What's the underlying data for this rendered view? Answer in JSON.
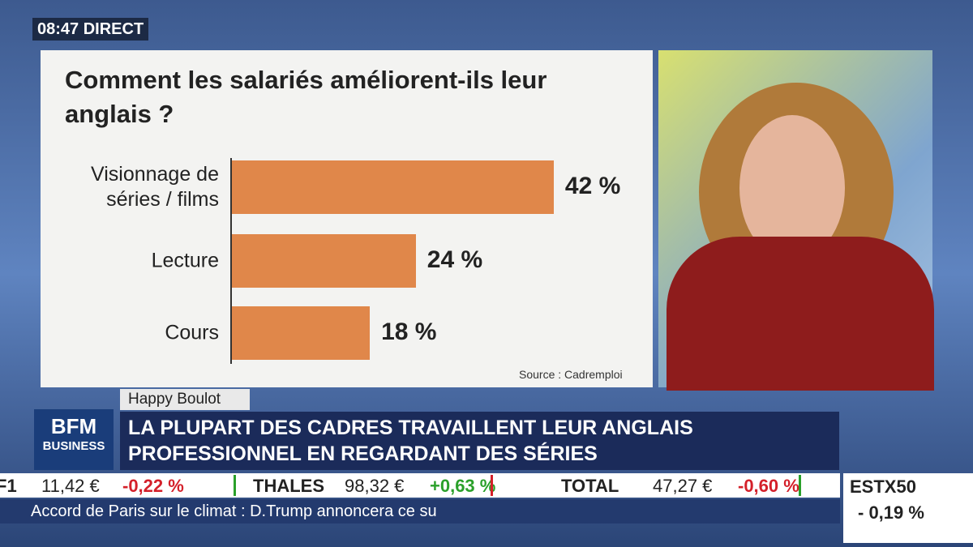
{
  "chart_data": {
    "type": "barh",
    "title": "Comment les salariés améliorent-ils leur anglais ?",
    "categories": [
      "Visionnage de séries / films",
      "Lecture",
      "Cours"
    ],
    "values": [
      42,
      24,
      18
    ],
    "value_labels": [
      "42 %",
      "24 %",
      "18 %"
    ],
    "color": "#e0874a",
    "source": "Source : Cadremploi"
  },
  "overlay": {
    "time": "08:47",
    "status": "DIRECT",
    "program": "Happy Boulot",
    "headline": "LA PLUPART DES CADRES TRAVAILLENT LEUR ANGLAIS PROFESSIONNEL EN REGARDANT DES SÉRIES",
    "logo": [
      "BFM",
      "BUSINESS"
    ],
    "ticker": [
      {
        "name": "F1",
        "price": "11,42 €",
        "change": "-0,22 %"
      },
      {
        "name": "THALES",
        "price": "98,32 €",
        "change": "+0,63 %"
      },
      {
        "name": "TOTAL",
        "price": "47,27 €",
        "change": "-0,60 %"
      }
    ],
    "index": {
      "name": "ESTX50",
      "change": "- 0,19 %"
    },
    "crawler": "Accord de Paris sur le climat : D.Trump annoncera ce su"
  }
}
